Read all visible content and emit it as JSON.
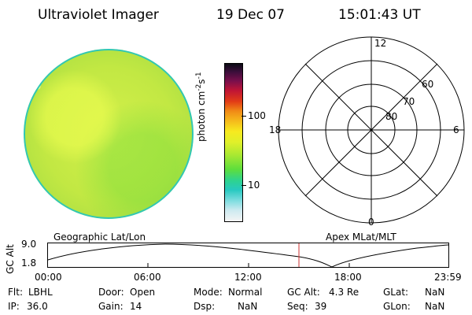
{
  "header": {
    "title": "Ultraviolet Imager",
    "date": "19 Dec 07",
    "time": "15:01:43 UT"
  },
  "colorbar": {
    "units": "photon cm-2s-1",
    "tick_100": "100",
    "tick_10": "10"
  },
  "polar_plot": {
    "lbl_12": "12",
    "lbl_18": "18",
    "lbl_6": "6",
    "lbl_0": "0",
    "lbl_60": "60",
    "lbl_70": "70",
    "lbl_80": "80"
  },
  "timeline": {
    "left_label": "Geographic Lat/Lon",
    "right_label": "Apex MLat/MLT",
    "ylabel": "GC Alt",
    "ytick_top": "9.0",
    "ytick_bottom": "1.8",
    "x_ticks": [
      "00:00",
      "06:00",
      "12:00",
      "18:00",
      "23:59"
    ],
    "marker_time": "15:01:43"
  },
  "info": {
    "flt_label": "Flt:",
    "flt_value": "LBHL",
    "ip_label": "IP:",
    "ip_value": "36.0",
    "door_label": "Door:",
    "door_value": "Open",
    "gain_label": "Gain:",
    "gain_value": "14",
    "mode_label": "Mode:",
    "mode_value": "Normal",
    "dsp_label": "Dsp:",
    "dsp_value": "NaN",
    "gcalt_label": "GC Alt:",
    "gcalt_value": "4.3 Re",
    "seq_label": "Seq:",
    "seq_value": "39",
    "glat_label": "GLat:",
    "glat_value": "NaN",
    "glon_label": "GLon:",
    "glon_value": "NaN"
  },
  "colors": {
    "disk_edge": "#2fc7b6",
    "marker": "#cc3333"
  }
}
